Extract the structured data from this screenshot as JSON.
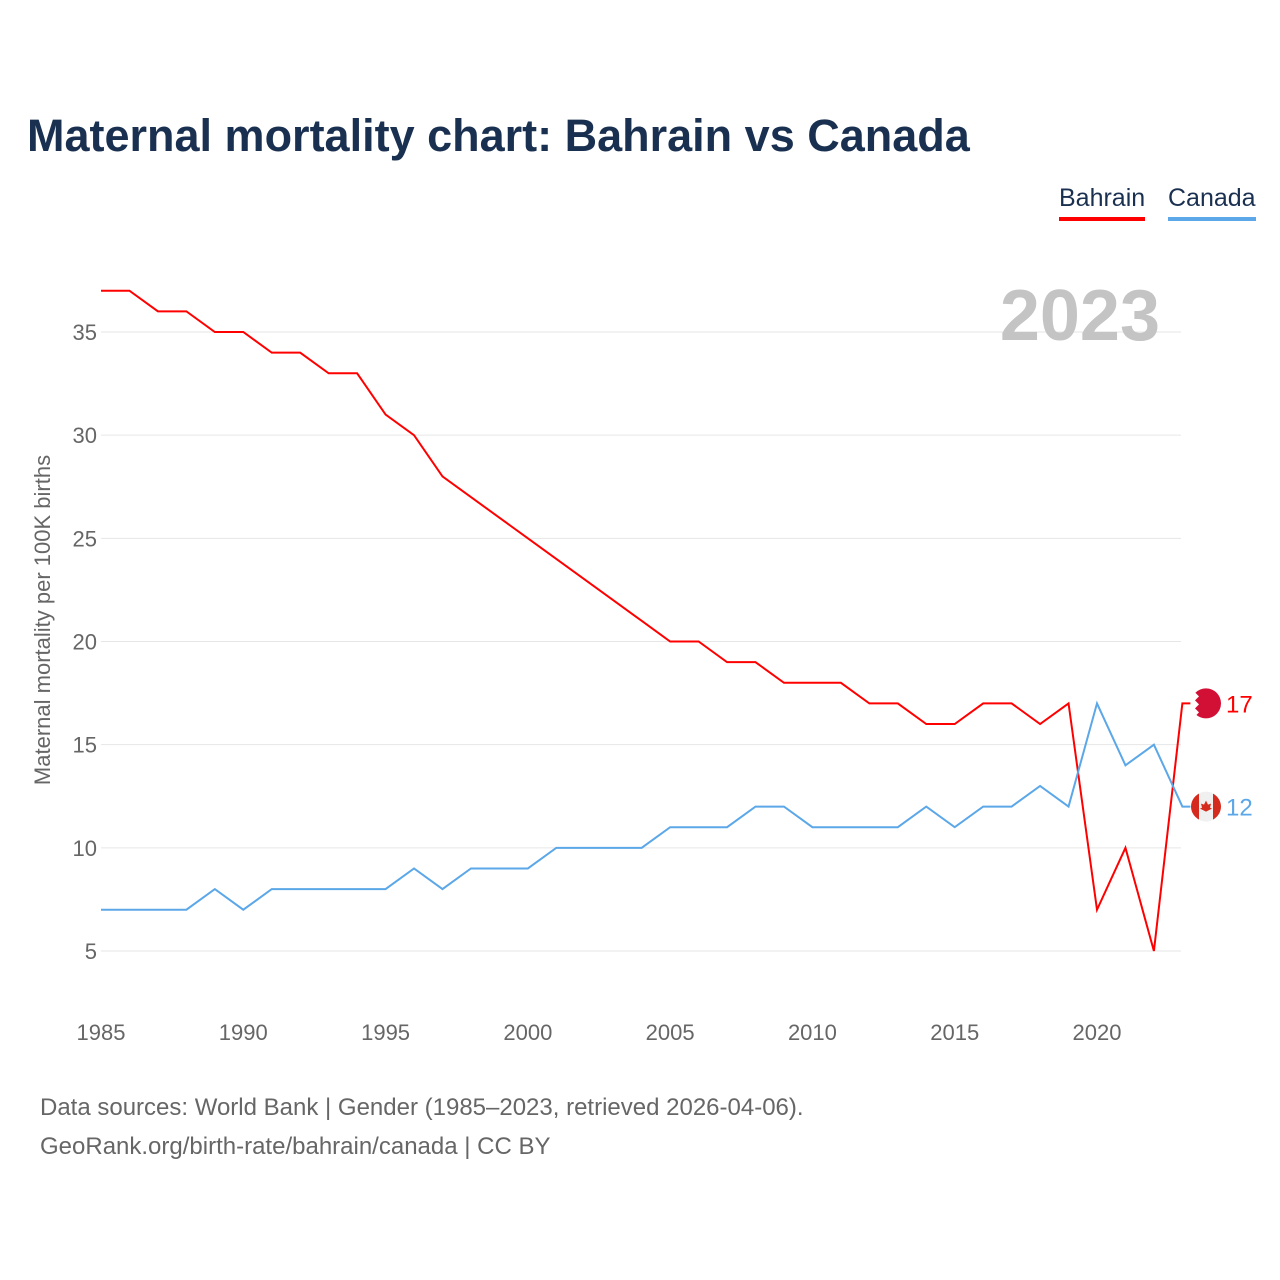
{
  "title": "Maternal mortality chart: Bahrain vs Canada",
  "legend": [
    "Bahrain",
    "Canada"
  ],
  "year_label": "2023",
  "source_line1": "Data sources: World Bank | Gender (1985–2023, retrieved 2026-04-06).",
  "source_line2": "GeoRank.org/birth-rate/bahrain/canada | CC BY",
  "chart_data": {
    "type": "line",
    "title": "Maternal mortality chart: Bahrain vs Canada",
    "xlabel": "",
    "ylabel": "Maternal mortality per 100K births",
    "xlim": [
      1985,
      2023
    ],
    "ylim": [
      3,
      39
    ],
    "xticks": [
      1985,
      1990,
      1995,
      2000,
      2005,
      2010,
      2015,
      2020
    ],
    "yticks": [
      5,
      10,
      15,
      20,
      25,
      30,
      35
    ],
    "x": [
      1985,
      1986,
      1987,
      1988,
      1989,
      1990,
      1991,
      1992,
      1993,
      1994,
      1995,
      1996,
      1997,
      1998,
      1999,
      2000,
      2001,
      2002,
      2003,
      2004,
      2005,
      2006,
      2007,
      2008,
      2009,
      2010,
      2011,
      2012,
      2013,
      2014,
      2015,
      2016,
      2017,
      2018,
      2019,
      2020,
      2021,
      2022,
      2023
    ],
    "series": [
      {
        "name": "Bahrain",
        "color": "#ff0000",
        "values": [
          37,
          37,
          36,
          36,
          35,
          35,
          34,
          34,
          33,
          33,
          31,
          30,
          28,
          27,
          26,
          25,
          24,
          23,
          22,
          21,
          20,
          20,
          19,
          19,
          18,
          18,
          18,
          17,
          17,
          16,
          16,
          17,
          17,
          16,
          17,
          7,
          10,
          5,
          17
        ],
        "end_label": "17"
      },
      {
        "name": "Canada",
        "color": "#5ba7e8",
        "values": [
          7,
          7,
          7,
          7,
          8,
          7,
          8,
          8,
          8,
          8,
          8,
          9,
          8,
          9,
          9,
          9,
          10,
          10,
          10,
          10,
          11,
          11,
          11,
          12,
          12,
          11,
          11,
          11,
          11,
          12,
          11,
          12,
          12,
          13,
          12,
          17,
          14,
          15,
          12
        ],
        "end_label": "12"
      }
    ],
    "grid": true,
    "legend_position": "top-right"
  }
}
